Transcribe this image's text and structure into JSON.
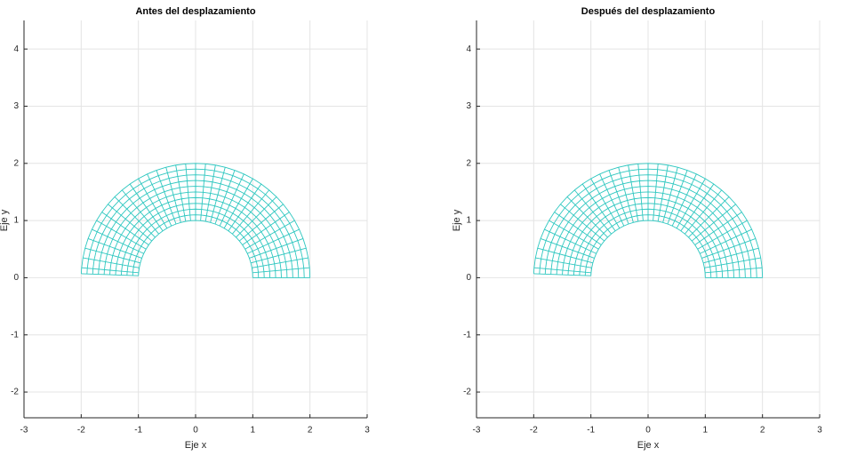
{
  "chart_data": [
    {
      "type": "mesh",
      "title": "Antes del desplazamiento",
      "xlabel": "Eje x",
      "ylabel": "Eje y",
      "r": [
        1,
        1.1,
        1.2,
        1.3,
        1.4,
        1.5,
        1.6,
        1.7,
        1.8,
        1.9,
        2
      ],
      "theta": [
        0,
        5,
        10,
        15,
        20,
        25,
        30,
        35,
        40,
        45,
        50,
        55,
        60,
        65,
        70,
        75,
        80,
        85,
        90,
        95,
        100,
        105,
        110,
        115,
        120,
        125,
        130,
        135,
        140,
        145,
        150,
        155,
        160,
        165,
        170,
        175,
        178
      ],
      "color": "#2ec7c0",
      "xlim": [
        -3,
        3
      ],
      "ylim": [
        -2.45,
        4.5
      ],
      "xticks": [
        -3,
        -2,
        -1,
        0,
        1,
        2,
        3
      ],
      "yticks": [
        -2,
        -1,
        0,
        1,
        2,
        3,
        4
      ],
      "grid": true
    },
    {
      "type": "mesh",
      "title": "Después del desplazamiento",
      "xlabel": "Eje x",
      "ylabel": "Eje y",
      "r": [
        1,
        1.1,
        1.2,
        1.3,
        1.4,
        1.5,
        1.6,
        1.7,
        1.8,
        1.9,
        2
      ],
      "theta": [
        0,
        5,
        10,
        15,
        20,
        25,
        30,
        35,
        40,
        45,
        50,
        55,
        60,
        65,
        70,
        75,
        80,
        85,
        90,
        95,
        100,
        105,
        110,
        115,
        120,
        125,
        130,
        135,
        140,
        145,
        150,
        155,
        160,
        165,
        170,
        175,
        178
      ],
      "color": "#2ec7c0",
      "xlim": [
        -3,
        3
      ],
      "ylim": [
        -2.45,
        4.5
      ],
      "xticks": [
        -3,
        -2,
        -1,
        0,
        1,
        2,
        3
      ],
      "yticks": [
        -2,
        -1,
        0,
        1,
        2,
        3,
        4
      ],
      "grid": true
    }
  ]
}
